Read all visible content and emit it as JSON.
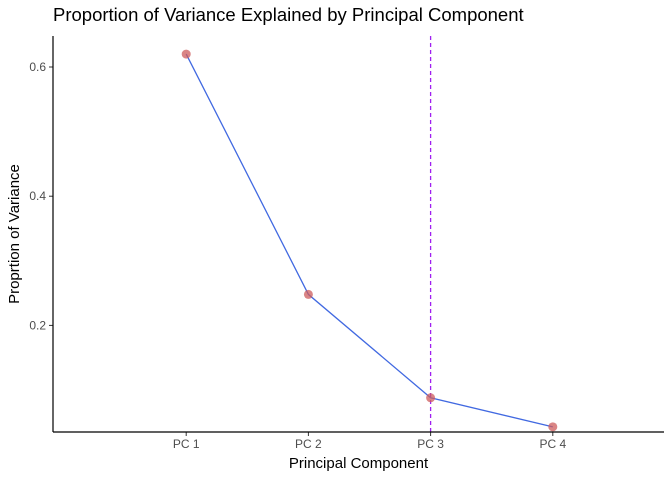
{
  "chart_data": {
    "type": "line",
    "title": "Proportion of Variance Explained by Principal Component",
    "xlabel": "Principal Component",
    "ylabel": "Proprtion of Variance",
    "categories": [
      "PC 1",
      "PC 2",
      "PC 3",
      "PC 4"
    ],
    "values": [
      0.62,
      0.248,
      0.088,
      0.043
    ],
    "ylim": [
      0.035,
      0.648
    ],
    "yticks": [
      0.2,
      0.4,
      0.6
    ],
    "ytick_labels": [
      "0.2",
      "0.4",
      "0.6"
    ],
    "vline_category": "PC 3",
    "grid": false,
    "colors": {
      "line": "#4169e1",
      "point": "#cd5c5c",
      "vline": "#a020f0",
      "axis": "#000000"
    }
  }
}
